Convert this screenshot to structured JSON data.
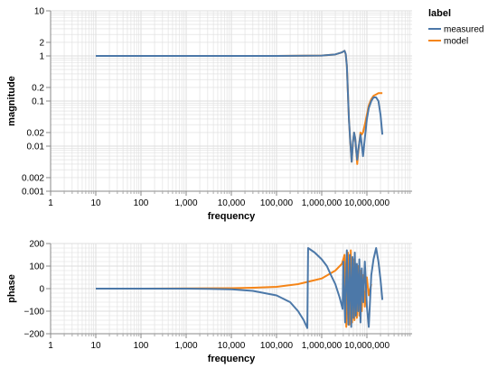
{
  "chart_data": [
    {
      "type": "line",
      "xlabel": "frequency",
      "ylabel": "magnitude",
      "x_scale": "log",
      "y_scale": "log",
      "xlim": [
        1,
        100000000
      ],
      "ylim": [
        0.001,
        10
      ],
      "grid": true,
      "x_tick_labels": [
        "1",
        "10",
        "100",
        "1,000",
        "10,000",
        "100,000",
        "1,000,000",
        "10,000,000"
      ],
      "y_tick_labels": [
        "0.001",
        "0.002",
        "0.01",
        "0.02",
        "0.1",
        "0.2",
        "1",
        "2",
        "10"
      ],
      "series": [
        {
          "name": "measured",
          "color": "#4c78a8",
          "x": [
            10,
            100,
            1000,
            10000,
            100000,
            1000000,
            2000000,
            2800000,
            3200000,
            3400000,
            3600000,
            3800000,
            4000000,
            4300000,
            4600000,
            4900000,
            5200000,
            5500000,
            5800000,
            6100000,
            6400000,
            6800000,
            7200000,
            7600000,
            8200000,
            9000000,
            10000000,
            11000000,
            12500000,
            14000000,
            16000000,
            18000000,
            20000000,
            22000000
          ],
          "y": [
            1.0,
            1.0,
            1.0,
            1.0,
            1.0,
            1.02,
            1.08,
            1.2,
            1.3,
            1.1,
            0.6,
            0.15,
            0.04,
            0.012,
            0.0045,
            0.012,
            0.02,
            0.015,
            0.008,
            0.005,
            0.008,
            0.012,
            0.018,
            0.012,
            0.006,
            0.015,
            0.04,
            0.07,
            0.1,
            0.12,
            0.12,
            0.1,
            0.05,
            0.018
          ]
        },
        {
          "name": "model",
          "color": "#f58518",
          "x": [
            10,
            100,
            1000,
            10000,
            100000,
            1000000,
            2000000,
            2800000,
            3200000,
            3400000,
            3600000,
            3800000,
            4000000,
            4300000,
            4600000,
            4900000,
            5200000,
            5500000,
            5800000,
            6100000,
            6400000,
            6800000,
            7200000,
            7600000,
            8200000,
            9000000,
            10000000,
            11000000,
            12500000,
            14000000,
            16000000,
            18000000,
            20000000,
            22000000
          ],
          "y": [
            1.0,
            1.0,
            1.0,
            1.0,
            1.0,
            1.02,
            1.08,
            1.2,
            1.3,
            1.1,
            0.6,
            0.15,
            0.04,
            0.012,
            0.0045,
            0.012,
            0.02,
            0.015,
            0.008,
            0.004,
            0.007,
            0.012,
            0.02,
            0.018,
            0.02,
            0.03,
            0.05,
            0.08,
            0.11,
            0.13,
            0.14,
            0.15,
            0.15,
            0.15
          ]
        }
      ]
    },
    {
      "type": "line",
      "xlabel": "frequency",
      "ylabel": "phase",
      "x_scale": "log",
      "ylim": [
        -200,
        200
      ],
      "grid": true,
      "x_tick_labels": [
        "1",
        "10",
        "100",
        "1,000",
        "10,000",
        "100,000",
        "1,000,000",
        "10,000,000"
      ],
      "y_tick_labels": [
        "200",
        "100",
        "0",
        "−100",
        "−200"
      ],
      "y_ticks": [
        200,
        100,
        0,
        -100,
        -200
      ],
      "series": [
        {
          "name": "measured",
          "color": "#4c78a8",
          "x": [
            10,
            100,
            1000,
            3000,
            10000,
            30000,
            100000,
            200000,
            300000,
            400000,
            480000,
            500000,
            700000,
            1000000,
            1300000,
            1600000,
            2000000,
            2500000,
            2900000,
            3000000,
            3300000,
            3600000,
            3900000,
            4200000,
            4500000,
            4800000,
            5100000,
            5400000,
            5700000,
            6000000,
            6400000,
            6800000,
            7200000,
            7700000,
            8300000,
            9000000,
            10000000,
            11000000,
            12500000,
            14000000,
            16000000,
            18000000,
            20000000,
            22000000
          ],
          "y": [
            0,
            0,
            0,
            -1,
            -3,
            -10,
            -30,
            -60,
            -100,
            -140,
            -175,
            180,
            160,
            130,
            100,
            60,
            20,
            -40,
            -90,
            120,
            -150,
            170,
            -160,
            150,
            -170,
            140,
            -130,
            160,
            -120,
            110,
            -100,
            130,
            -150,
            90,
            -60,
            120,
            -80,
            -170,
            60,
            130,
            180,
            120,
            40,
            -50
          ]
        },
        {
          "name": "model",
          "color": "#f58518",
          "x": [
            10,
            100,
            1000,
            10000,
            30000,
            100000,
            300000,
            1000000,
            2000000,
            2800000,
            3200000,
            3500000,
            3800000,
            4100000,
            4400000,
            4700000,
            5000000,
            5300000,
            5600000,
            6000000,
            6400000,
            6800000,
            7200000,
            7700000,
            8300000,
            9000000,
            10000000,
            11000000,
            12500000
          ],
          "y": [
            0,
            0,
            1,
            2,
            4,
            8,
            20,
            45,
            80,
            110,
            150,
            -170,
            160,
            -160,
            170,
            -150,
            130,
            -140,
            110,
            -130,
            100,
            -120,
            80,
            -100,
            60,
            -80,
            50,
            -30,
            20
          ]
        }
      ]
    }
  ],
  "legend": {
    "title": "label",
    "placement": "top-right",
    "items": [
      {
        "label": "measured",
        "color": "#4c78a8"
      },
      {
        "label": "model",
        "color": "#f58518"
      }
    ]
  }
}
